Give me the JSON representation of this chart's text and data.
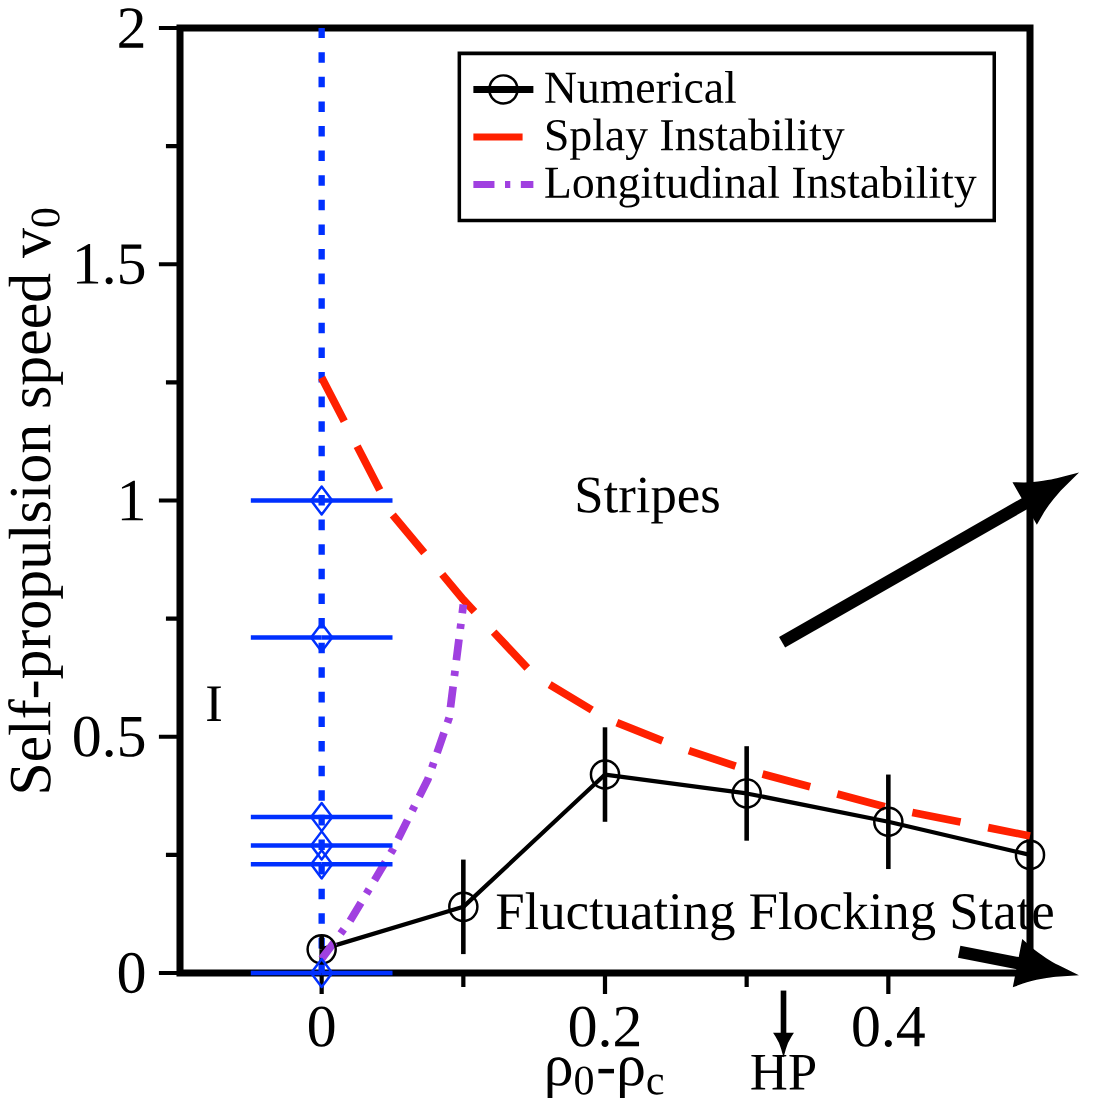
{
  "chart_data": {
    "type": "line",
    "xlabel": "ρ$_{0}$-ρ$_{c}$",
    "ylabel": "Self-propulsion speed v$_{0}$",
    "xlim": [
      -0.1,
      0.5
    ],
    "ylim": [
      0,
      2
    ],
    "xticks": [
      0,
      0.2,
      0.4
    ],
    "yticks": [
      0,
      0.5,
      1,
      1.5,
      2
    ],
    "legend": "top right",
    "series": [
      {
        "name": "Numerical",
        "color": "#000000",
        "marker": "circle",
        "line_style": "solid",
        "x": [
          0,
          0.1,
          0.2,
          0.3,
          0.4,
          0.5
        ],
        "values": [
          0.05,
          0.14,
          0.42,
          0.38,
          0.32,
          0.25
        ],
        "errors": [
          0.03,
          0.1,
          0.1,
          0.1,
          0.1,
          null
        ]
      },
      {
        "name": "Splay Instability",
        "color": "#ff2000",
        "marker": "none",
        "line_style": "dashed",
        "x": [
          0,
          0.05,
          0.1,
          0.15,
          0.2,
          0.25,
          0.3,
          0.35,
          0.4,
          0.45,
          0.5
        ],
        "values": [
          1.26,
          0.97,
          0.79,
          0.63,
          0.54,
          0.48,
          0.43,
          0.39,
          0.35,
          0.32,
          0.29
        ]
      },
      {
        "name": "Longitudinal Instability",
        "color": "#a040e0",
        "marker": "none",
        "line_style": "dashdotted",
        "x": [
          0,
          0.02,
          0.05,
          0.075,
          0.09,
          0.1
        ],
        "values": [
          0.03,
          0.11,
          0.26,
          0.41,
          0.54,
          0.78
        ]
      },
      {
        "type": "scatter",
        "color": "#0030ff",
        "marker": "diamond",
        "x": [
          0,
          0,
          0,
          0,
          0,
          0
        ],
        "values": [
          1.0,
          0.71,
          0.33,
          0.27,
          0.23,
          0
        ],
        "xerrors": [
          0.05,
          0.05,
          0.05,
          0.05,
          0.05,
          0.05
        ]
      }
    ],
    "ref_lines": [
      {
        "axis": "x",
        "value": 0,
        "color": "#0030ff",
        "line_style": "dotted"
      }
    ],
    "annotations": [
      "Stripes",
      "I",
      "Fluctuating Flocking State",
      "HP"
    ]
  }
}
